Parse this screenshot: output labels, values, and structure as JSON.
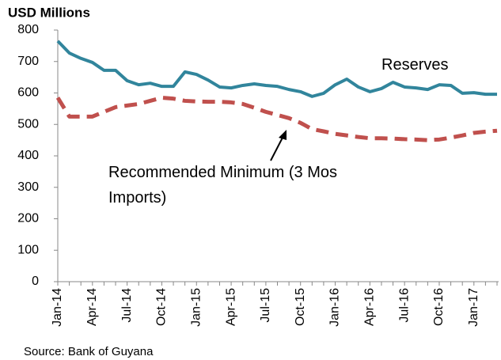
{
  "chart_data": {
    "type": "line",
    "ylabel": "USD Millions",
    "source": "Source: Bank of Guyana",
    "categories": [
      "Jan-14",
      null,
      null,
      "Apr-14",
      null,
      null,
      "Jul-14",
      null,
      null,
      "Oct-14",
      null,
      null,
      "Jan-15",
      null,
      null,
      "Apr-15",
      null,
      null,
      "Jul-15",
      null,
      null,
      "Oct-15",
      null,
      null,
      "Jan-16",
      null,
      null,
      "Apr-16",
      null,
      null,
      "Jul-16",
      null,
      null,
      "Oct-16",
      null,
      null,
      "Jan-17",
      null,
      null
    ],
    "ylim": [
      0,
      800
    ],
    "yticks": [
      0,
      100,
      200,
      300,
      400,
      500,
      600,
      700,
      800
    ],
    "grid": false,
    "series": [
      {
        "name": "Reserves",
        "color": "#31859c",
        "dashed": false,
        "values": [
          765,
          727,
          710,
          697,
          672,
          672,
          639,
          626,
          631,
          621,
          621,
          667,
          659,
          641,
          619,
          616,
          624,
          629,
          624,
          621,
          611,
          604,
          589,
          599,
          626,
          644,
          619,
          604,
          614,
          634,
          619,
          616,
          611,
          626,
          624,
          599,
          601,
          596,
          596
        ]
      },
      {
        "name": "Recommended Minimum (3 Mos Imports)",
        "color": "#c0504d",
        "dashed": true,
        "values": [
          585,
          525,
          525,
          525,
          540,
          555,
          560,
          565,
          575,
          585,
          582,
          575,
          573,
          572,
          572,
          570,
          565,
          553,
          540,
          530,
          520,
          505,
          485,
          478,
          470,
          465,
          460,
          456,
          456,
          455,
          453,
          452,
          450,
          452,
          458,
          465,
          473,
          477,
          480
        ]
      }
    ]
  }
}
